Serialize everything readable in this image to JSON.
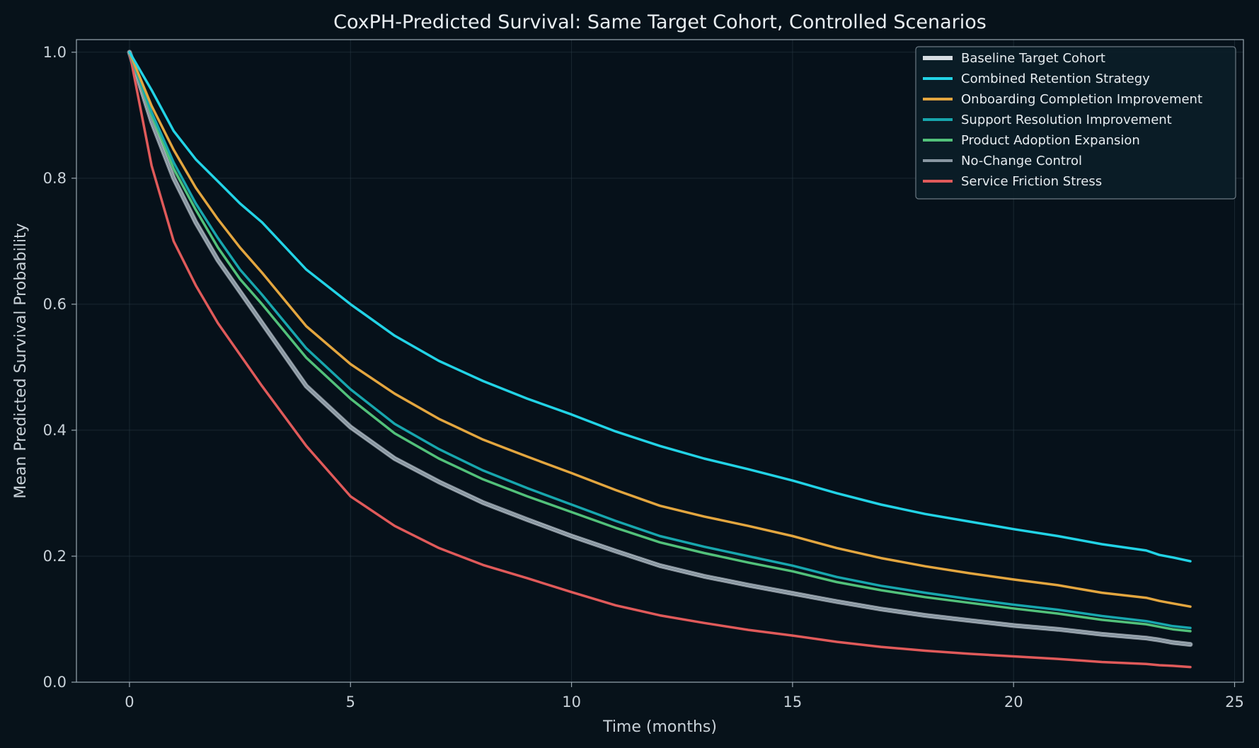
{
  "chart_data": {
    "type": "line",
    "title": "CoxPH-Predicted Survival: Same Target Cohort, Controlled Scenarios",
    "xlabel": "Time (months)",
    "ylabel": "Mean Predicted Survival Probability",
    "xlim": [
      -1.2,
      25.2
    ],
    "ylim": [
      0.0,
      1.02
    ],
    "x_ticks": [
      0,
      5,
      10,
      15,
      20,
      25
    ],
    "y_ticks": [
      0.0,
      0.2,
      0.4,
      0.6,
      0.8,
      1.0
    ],
    "x_tick_labels": [
      "0",
      "5",
      "10",
      "15",
      "20",
      "25"
    ],
    "y_tick_labels": [
      "0.0",
      "0.2",
      "0.4",
      "0.6",
      "0.8",
      "1.0"
    ],
    "grid": true,
    "legend_position": "top-right",
    "x": [
      0,
      0.5,
      1,
      1.5,
      2,
      2.5,
      3,
      4,
      5,
      6,
      7,
      8,
      9,
      10,
      11,
      12,
      13,
      14,
      15,
      16,
      17,
      18,
      19,
      20,
      21,
      22,
      23,
      23.3,
      23.6,
      24
    ],
    "series": [
      {
        "name": "Baseline Target Cohort",
        "color": "#d6dde2",
        "outline": "#6f7b85",
        "width": 4.5,
        "values": [
          1.0,
          0.89,
          0.8,
          0.73,
          0.67,
          0.62,
          0.57,
          0.47,
          0.405,
          0.355,
          0.318,
          0.285,
          0.258,
          0.232,
          0.208,
          0.185,
          0.168,
          0.154,
          0.141,
          0.128,
          0.116,
          0.106,
          0.098,
          0.09,
          0.084,
          0.076,
          0.07,
          0.067,
          0.063,
          0.06
        ]
      },
      {
        "name": "Combined Retention Strategy",
        "color": "#22d3e6",
        "width": 3.5,
        "values": [
          1.0,
          0.94,
          0.875,
          0.83,
          0.795,
          0.76,
          0.73,
          0.655,
          0.6,
          0.55,
          0.51,
          0.478,
          0.45,
          0.425,
          0.398,
          0.375,
          0.355,
          0.338,
          0.32,
          0.3,
          0.282,
          0.267,
          0.255,
          0.243,
          0.232,
          0.219,
          0.209,
          0.202,
          0.198,
          0.192
        ]
      },
      {
        "name": "Onboarding Completion Improvement",
        "color": "#e3a63f",
        "width": 3.5,
        "values": [
          1.0,
          0.915,
          0.845,
          0.785,
          0.735,
          0.69,
          0.65,
          0.565,
          0.505,
          0.458,
          0.418,
          0.385,
          0.358,
          0.332,
          0.305,
          0.28,
          0.263,
          0.248,
          0.232,
          0.213,
          0.197,
          0.184,
          0.173,
          0.163,
          0.154,
          0.142,
          0.134,
          0.129,
          0.125,
          0.12
        ]
      },
      {
        "name": "Support Resolution Improvement",
        "color": "#17a6ad",
        "width": 3.5,
        "values": [
          1.0,
          0.905,
          0.825,
          0.76,
          0.705,
          0.655,
          0.615,
          0.53,
          0.465,
          0.41,
          0.37,
          0.336,
          0.308,
          0.282,
          0.256,
          0.232,
          0.215,
          0.2,
          0.185,
          0.167,
          0.153,
          0.142,
          0.132,
          0.123,
          0.115,
          0.105,
          0.097,
          0.093,
          0.089,
          0.086
        ]
      },
      {
        "name": "Product Adoption Expansion",
        "color": "#52c17a",
        "width": 3.5,
        "values": [
          1.0,
          0.9,
          0.815,
          0.75,
          0.69,
          0.64,
          0.6,
          0.515,
          0.45,
          0.395,
          0.355,
          0.322,
          0.295,
          0.27,
          0.245,
          0.222,
          0.205,
          0.19,
          0.176,
          0.159,
          0.146,
          0.135,
          0.126,
          0.117,
          0.109,
          0.099,
          0.092,
          0.088,
          0.084,
          0.081
        ]
      },
      {
        "name": "No-Change Control",
        "color": "#8896a1",
        "width": 3.5,
        "values": [
          1.0,
          0.89,
          0.8,
          0.73,
          0.67,
          0.62,
          0.57,
          0.47,
          0.405,
          0.355,
          0.318,
          0.285,
          0.258,
          0.232,
          0.208,
          0.185,
          0.168,
          0.154,
          0.141,
          0.128,
          0.116,
          0.106,
          0.098,
          0.09,
          0.084,
          0.076,
          0.07,
          0.067,
          0.063,
          0.06
        ]
      },
      {
        "name": "Service Friction Stress",
        "color": "#e05a5a",
        "width": 3.5,
        "values": [
          1.0,
          0.82,
          0.7,
          0.63,
          0.57,
          0.52,
          0.47,
          0.375,
          0.295,
          0.248,
          0.213,
          0.186,
          0.165,
          0.143,
          0.122,
          0.106,
          0.094,
          0.083,
          0.074,
          0.064,
          0.056,
          0.05,
          0.045,
          0.041,
          0.037,
          0.032,
          0.029,
          0.027,
          0.026,
          0.024
        ]
      }
    ]
  }
}
